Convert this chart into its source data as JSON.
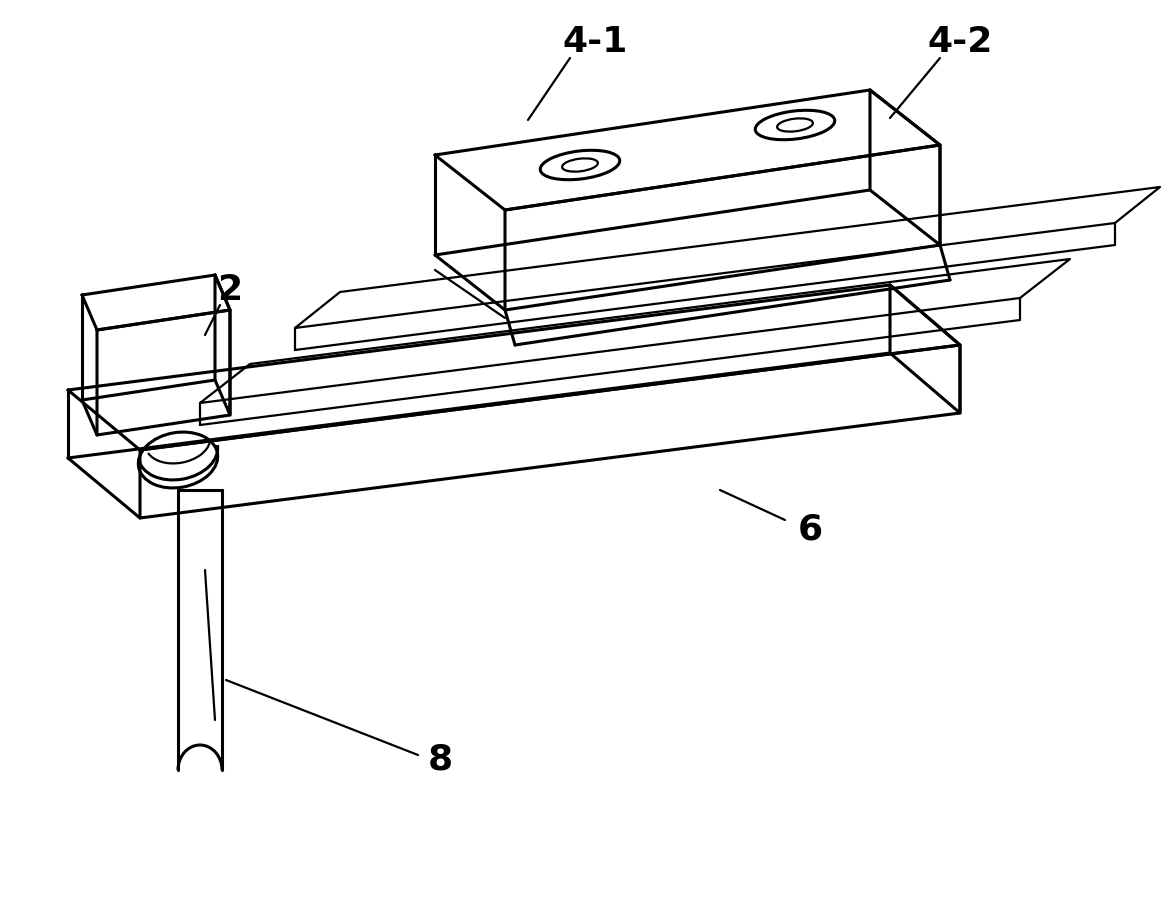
{
  "fig_width": 11.7,
  "fig_height": 9.07,
  "dpi": 100,
  "bg_color": "#ffffff",
  "line_color": "#000000",
  "lw": 2.2,
  "tlw": 1.6,
  "label_fontsize": 26,
  "label_fontweight": "bold"
}
